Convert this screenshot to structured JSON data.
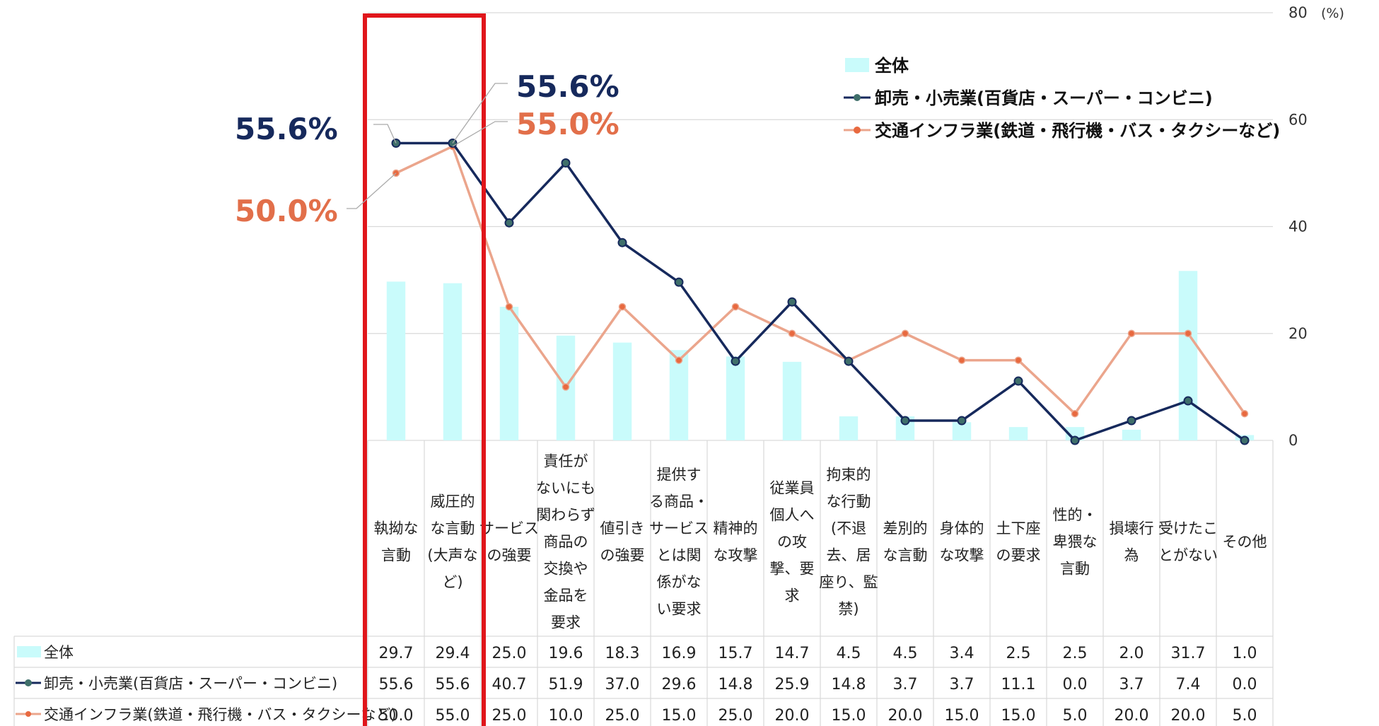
{
  "chart_data": {
    "type": "bar",
    "categories": [
      [
        "執拗な",
        "言動"
      ],
      [
        "威圧的",
        "な言動",
        "(大声な",
        "ど)"
      ],
      [
        "サービス",
        "の強要"
      ],
      [
        "責任が",
        "ないにも",
        "関わらず",
        "商品の",
        "交換や",
        "金品を",
        "要求"
      ],
      [
        "値引き",
        "の強要"
      ],
      [
        "提供す",
        "る商品・",
        "サービス",
        "とは関",
        "係がな",
        "い要求"
      ],
      [
        "精神的",
        "な攻撃"
      ],
      [
        "従業員",
        "個人へ",
        "の攻",
        "撃、要",
        "求"
      ],
      [
        "拘束的",
        "な行動",
        "(不退",
        "去、居",
        "座り、監",
        "禁)"
      ],
      [
        "差別的",
        "な言動"
      ],
      [
        "身体的",
        "な攻撃"
      ],
      [
        "土下座",
        "の要求"
      ],
      [
        "性的・",
        "卑猥な",
        "言動"
      ],
      [
        "損壊行",
        "為"
      ],
      [
        "受けたこ",
        "とがない"
      ],
      [
        "その他"
      ]
    ],
    "series": [
      {
        "name": "全体",
        "type": "bar",
        "color": "#c9fbfb",
        "values": [
          29.7,
          29.4,
          25.0,
          19.6,
          18.3,
          16.9,
          15.7,
          14.7,
          4.5,
          4.5,
          3.4,
          2.5,
          2.5,
          2.0,
          31.7,
          1.0
        ]
      },
      {
        "name": "卸売・小売業(百貨店・スーパー・コンビニ)",
        "type": "line",
        "color": "#16295c",
        "values": [
          55.6,
          55.6,
          40.7,
          51.9,
          37.0,
          29.6,
          14.8,
          25.9,
          14.8,
          3.7,
          3.7,
          11.1,
          0.0,
          3.7,
          7.4,
          0.0
        ]
      },
      {
        "name": "交通インフラ業(鉄道・飛行機・バス・タクシーなど)",
        "type": "line",
        "color": "#eba58c",
        "values": [
          50.0,
          55.0,
          25.0,
          10.0,
          25.0,
          15.0,
          25.0,
          20.0,
          15.0,
          20.0,
          15.0,
          15.0,
          5.0,
          20.0,
          20.0,
          5.0
        ]
      }
    ],
    "table_values": [
      [
        "29.7",
        "29.4",
        "25.0",
        "19.6",
        "18.3",
        "16.9",
        "15.7",
        "14.7",
        "4.5",
        "4.5",
        "3.4",
        "2.5",
        "2.5",
        "2.0",
        "31.7",
        "1.0"
      ],
      [
        "55.6",
        "55.6",
        "40.7",
        "51.9",
        "37.0",
        "29.6",
        "14.8",
        "25.9",
        "14.8",
        "3.7",
        "3.7",
        "11.1",
        "0.0",
        "3.7",
        "7.4",
        "0.0"
      ],
      [
        "50.0",
        "55.0",
        "25.0",
        "10.0",
        "25.0",
        "15.0",
        "25.0",
        "20.0",
        "15.0",
        "20.0",
        "15.0",
        "15.0",
        "5.0",
        "20.0",
        "20.0",
        "5.0"
      ]
    ],
    "y_axis": {
      "ticks": [
        "0",
        "20",
        "40",
        "60",
        "80"
      ],
      "unit": "(%)",
      "position": "right"
    },
    "ylim": [
      0,
      80
    ],
    "grid": true,
    "legend_position": "top-right",
    "highlight_categories": [
      0,
      1
    ],
    "highlight_color": "#e0161b",
    "callouts": [
      {
        "text": "55.6%",
        "series": 1,
        "category": 0,
        "color": "#16295c"
      },
      {
        "text": "50.0%",
        "series": 2,
        "category": 0,
        "color": "#e26f4a"
      },
      {
        "text": "55.6%",
        "series": 1,
        "category": 1,
        "color": "#16295c"
      },
      {
        "text": "55.0%",
        "series": 2,
        "category": 1,
        "color": "#e26f4a"
      }
    ]
  }
}
